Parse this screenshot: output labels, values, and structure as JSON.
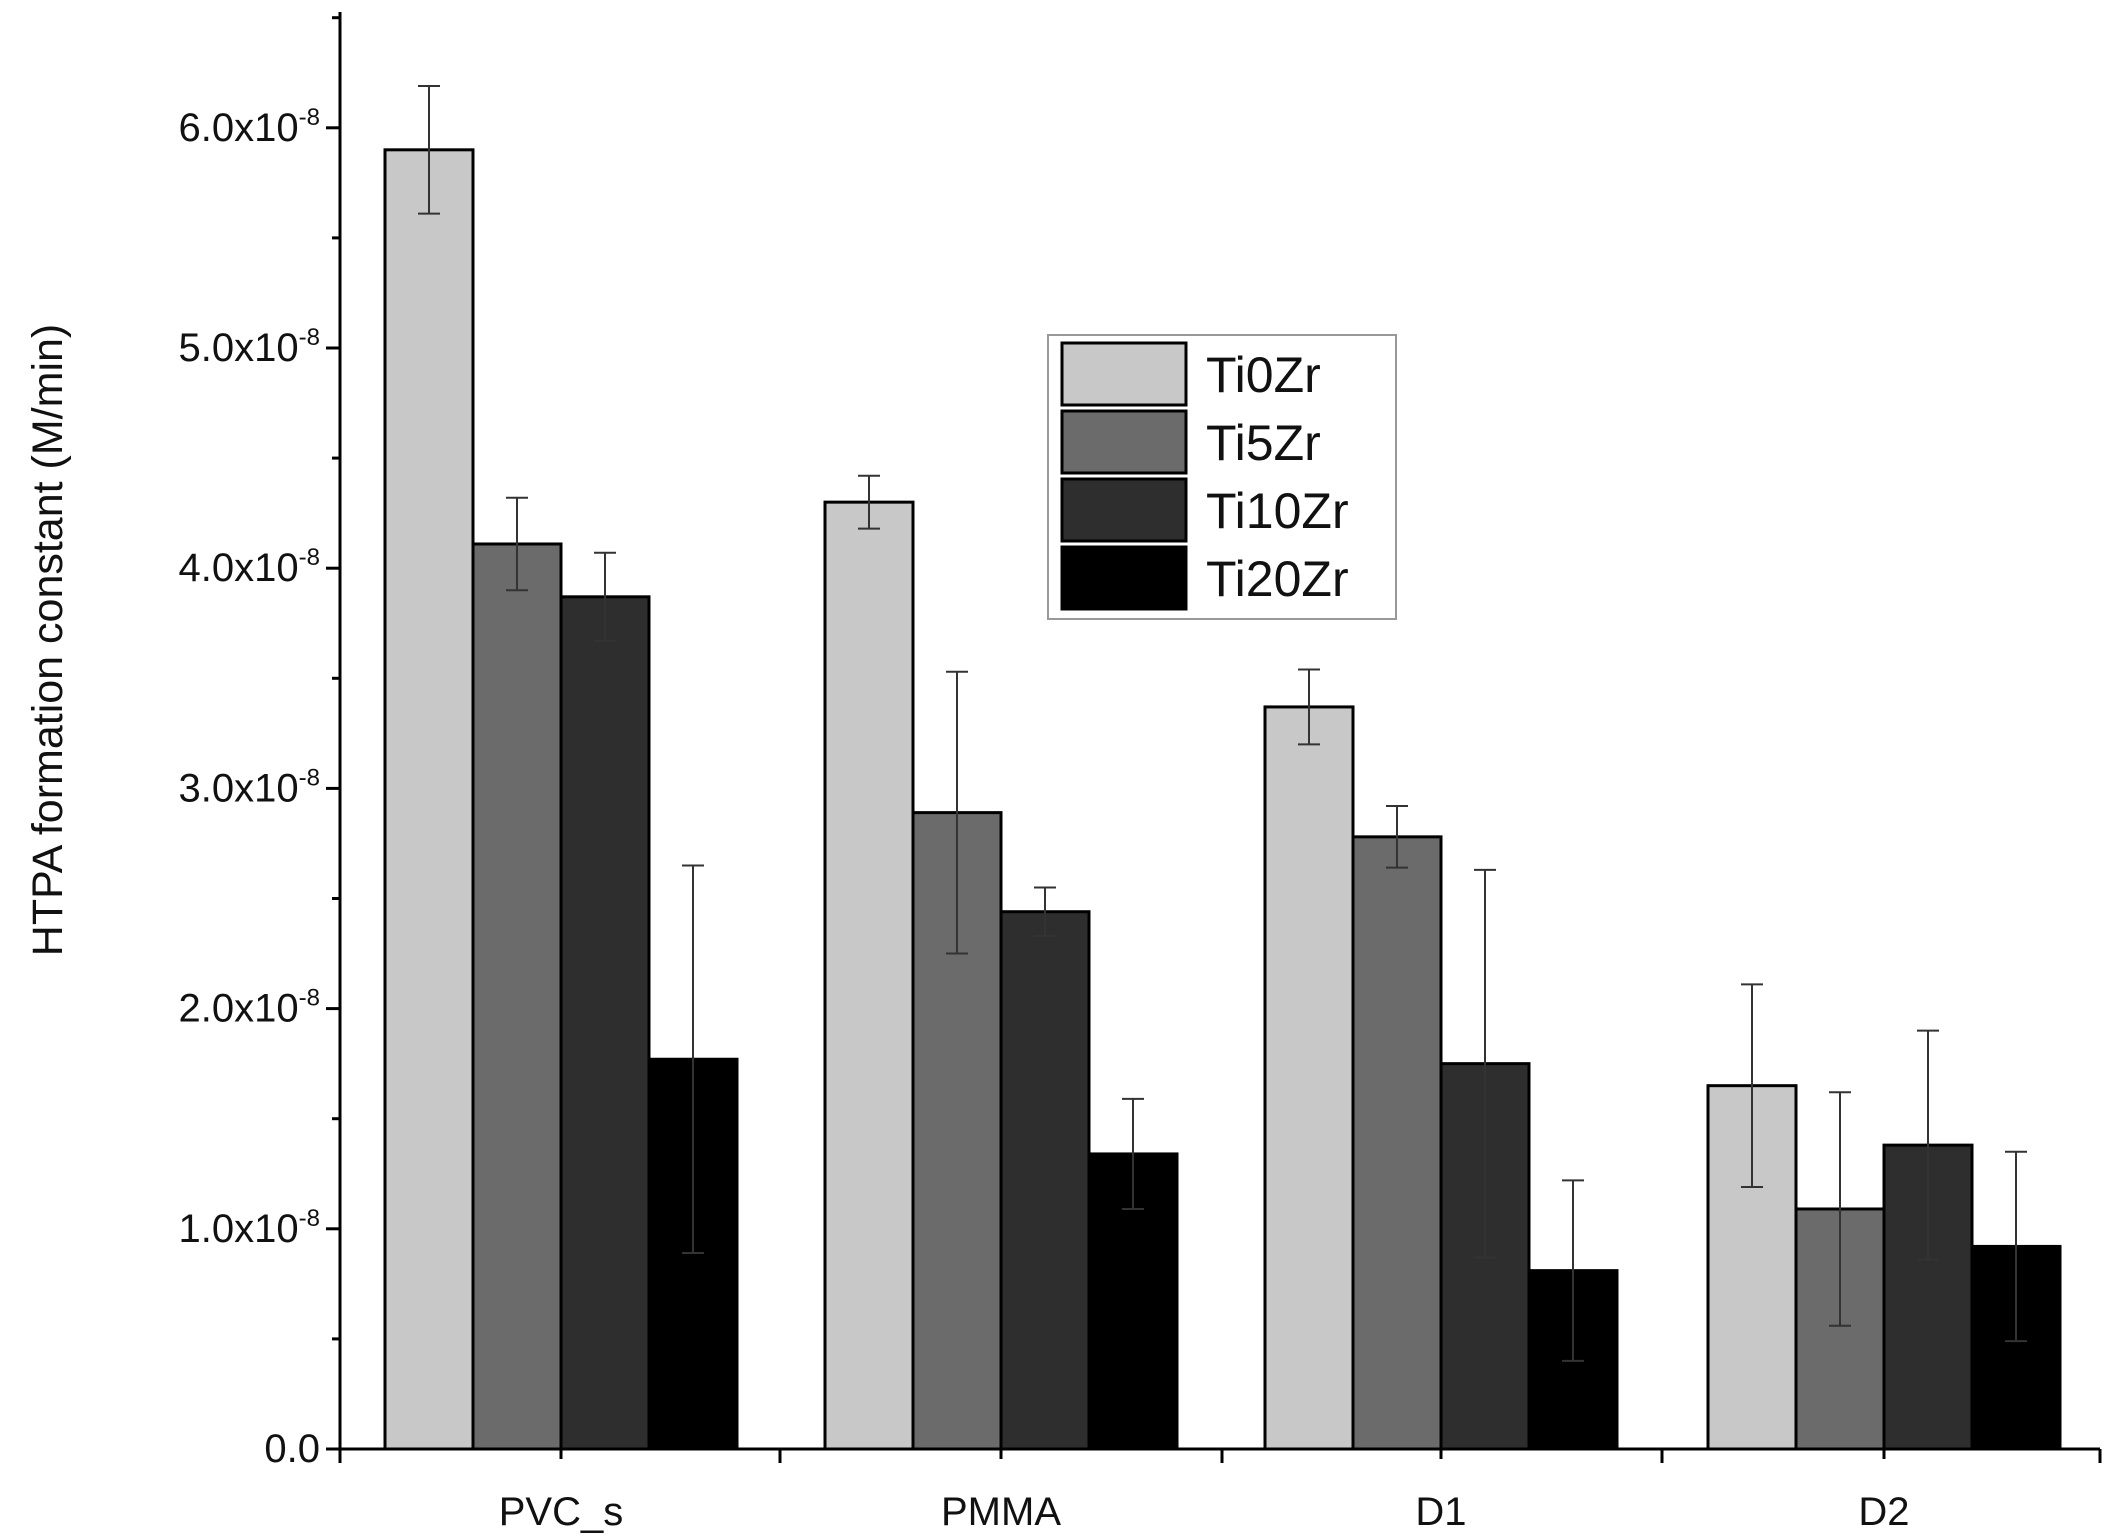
{
  "chart_data": {
    "type": "bar",
    "title": "",
    "xlabel": "",
    "ylabel": "HTPA formation constant (M/min)",
    "ylim": [
      0,
      6.5e-08
    ],
    "yticks": [
      {
        "value": 0,
        "mantissa": "0.0",
        "exp": ""
      },
      {
        "value": 1e-08,
        "mantissa": "1.0x10",
        "exp": "-8"
      },
      {
        "value": 2e-08,
        "mantissa": "2.0x10",
        "exp": "-8"
      },
      {
        "value": 3e-08,
        "mantissa": "3.0x10",
        "exp": "-8"
      },
      {
        "value": 4e-08,
        "mantissa": "4.0x10",
        "exp": "-8"
      },
      {
        "value": 5e-08,
        "mantissa": "5.0x10",
        "exp": "-8"
      },
      {
        "value": 6e-08,
        "mantissa": "6.0x10",
        "exp": "-8"
      }
    ],
    "categories": [
      "PVC_s",
      "PMMA",
      "D1",
      "D2"
    ],
    "series": [
      {
        "name": "Ti0Zr",
        "color": "#c8c8c8",
        "values": [
          5.9e-08,
          4.3e-08,
          3.37e-08,
          1.65e-08
        ],
        "errors": [
          2.9e-09,
          1.2e-09,
          1.7e-09,
          4.6e-09
        ]
      },
      {
        "name": "Ti5Zr",
        "color": "#6b6b6b",
        "values": [
          4.11e-08,
          2.89e-08,
          2.78e-08,
          1.09e-08
        ],
        "errors": [
          2.1e-09,
          6.4e-09,
          1.4e-09,
          5.3e-09
        ]
      },
      {
        "name": "Ti10Zr",
        "color": "#2e2e2e",
        "values": [
          3.87e-08,
          2.44e-08,
          1.75e-08,
          1.38e-08
        ],
        "errors": [
          2e-09,
          1.1e-09,
          8.8e-09,
          5.2e-09
        ]
      },
      {
        "name": "Ti20Zr",
        "color": "#000000",
        "values": [
          1.77e-08,
          1.34e-08,
          8.1e-09,
          9.2e-09
        ],
        "errors": [
          8.8e-09,
          2.5e-09,
          4.1e-09,
          4.3e-09
        ]
      }
    ],
    "legend_position": "upper-center"
  }
}
